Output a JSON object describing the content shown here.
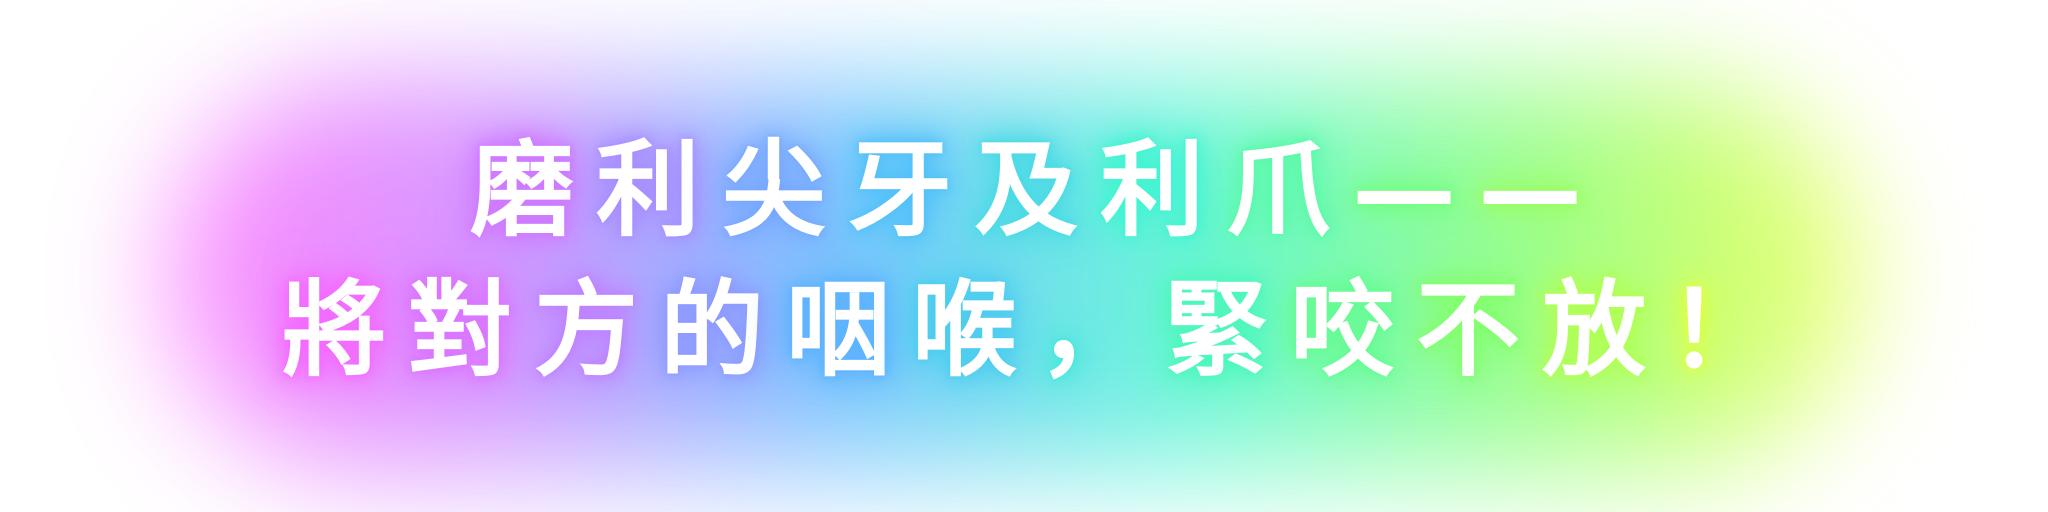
{
  "headline": {
    "line1": "磨利尖牙及利爪——",
    "line2": "將對方的咽喉，緊咬不放！"
  },
  "colors": {
    "background": "#ffffff",
    "text": "#ffffff",
    "rainbow": [
      "#ff66ff",
      "#c77dff",
      "#55b8ff",
      "#42f5d0",
      "#7dff6e",
      "#eaff3c"
    ]
  }
}
